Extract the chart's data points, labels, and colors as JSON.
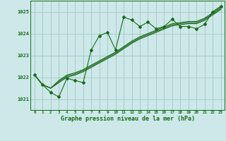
{
  "title": "Graphe pression niveau de la mer (hPa)",
  "bg_color": "#cce8e8",
  "grid_color": "#aacaca",
  "line_color": "#1a6b1a",
  "xlim": [
    -0.5,
    23.5
  ],
  "ylim": [
    1020.5,
    1025.5
  ],
  "yticks": [
    1021,
    1022,
    1023,
    1024,
    1025
  ],
  "xticks": [
    0,
    1,
    2,
    3,
    4,
    5,
    6,
    7,
    8,
    9,
    10,
    11,
    12,
    13,
    14,
    15,
    16,
    17,
    18,
    19,
    20,
    21,
    22,
    23
  ],
  "series1": [
    1022.1,
    1021.65,
    1021.3,
    1021.1,
    1021.95,
    1021.85,
    1021.75,
    1023.25,
    1023.9,
    1024.05,
    1023.25,
    1024.75,
    1024.62,
    1024.32,
    1024.52,
    1024.22,
    1024.32,
    1024.65,
    1024.32,
    1024.32,
    1024.22,
    1024.42,
    1025.0,
    1025.25
  ],
  "series2": [
    1022.1,
    1021.65,
    1021.5,
    1021.75,
    1022.0,
    1022.1,
    1022.25,
    1022.45,
    1022.65,
    1022.85,
    1023.05,
    1023.3,
    1023.55,
    1023.75,
    1023.9,
    1024.05,
    1024.2,
    1024.35,
    1024.4,
    1024.45,
    1024.45,
    1024.6,
    1024.85,
    1025.1
  ],
  "series3": [
    1022.1,
    1021.65,
    1021.5,
    1021.8,
    1022.05,
    1022.15,
    1022.3,
    1022.5,
    1022.7,
    1022.9,
    1023.1,
    1023.35,
    1023.6,
    1023.8,
    1023.95,
    1024.1,
    1024.25,
    1024.4,
    1024.45,
    1024.5,
    1024.5,
    1024.65,
    1024.9,
    1025.15
  ],
  "series4": [
    1022.1,
    1021.65,
    1021.5,
    1021.85,
    1022.1,
    1022.2,
    1022.35,
    1022.55,
    1022.75,
    1022.95,
    1023.15,
    1023.4,
    1023.65,
    1023.85,
    1024.0,
    1024.15,
    1024.3,
    1024.45,
    1024.5,
    1024.55,
    1024.55,
    1024.7,
    1024.95,
    1025.2
  ]
}
